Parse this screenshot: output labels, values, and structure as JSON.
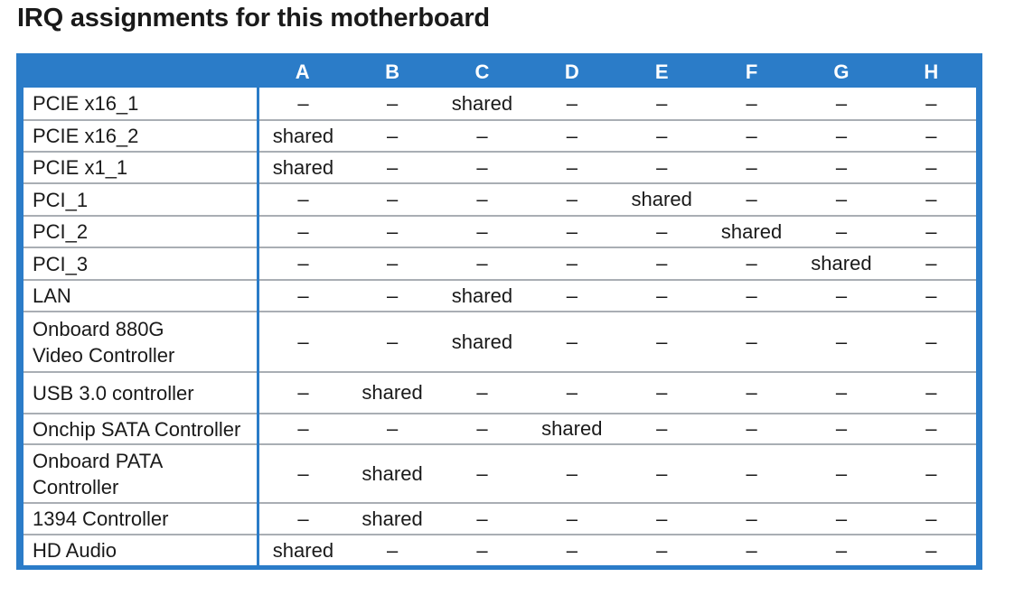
{
  "title": "IRQ assignments for this motherboard",
  "columns": [
    "",
    "A",
    "B",
    "C",
    "D",
    "E",
    "F",
    "G",
    "H"
  ],
  "rows": [
    {
      "label": "PCIE x16_1",
      "cells": [
        "–",
        "–",
        "shared",
        "–",
        "–",
        "–",
        "–",
        "–"
      ]
    },
    {
      "label": "PCIE x16_2",
      "cells": [
        "shared",
        "–",
        "–",
        "–",
        "–",
        "–",
        "–",
        "–"
      ]
    },
    {
      "label": "PCIE x1_1",
      "cells": [
        "shared",
        "–",
        "–",
        "–",
        "–",
        "–",
        "–",
        "–"
      ]
    },
    {
      "label": "PCI_1",
      "cells": [
        "–",
        "–",
        "–",
        "–",
        "shared",
        "–",
        "–",
        "–"
      ]
    },
    {
      "label": "PCI_2",
      "cells": [
        "–",
        "–",
        "–",
        "–",
        "–",
        "shared",
        "–",
        "–"
      ]
    },
    {
      "label": "PCI_3",
      "cells": [
        "–",
        "–",
        "–",
        "–",
        "–",
        "–",
        "shared",
        "–"
      ]
    },
    {
      "label": "LAN",
      "cells": [
        "–",
        "–",
        "shared",
        "–",
        "–",
        "–",
        "–",
        "–"
      ]
    },
    {
      "label": "Onboard 880G Video Controller",
      "cells": [
        "–",
        "–",
        "shared",
        "–",
        "–",
        "–",
        "–",
        "–"
      ]
    },
    {
      "label": "USB 3.0 controller",
      "cells": [
        "–",
        "shared",
        "–",
        "–",
        "–",
        "–",
        "–",
        "–"
      ]
    },
    {
      "label": "Onchip SATA Controller",
      "cells": [
        "–",
        "–",
        "–",
        "shared",
        "–",
        "–",
        "–",
        "–"
      ]
    },
    {
      "label": "Onboard PATA Controller",
      "cells": [
        "–",
        "shared",
        "–",
        "–",
        "–",
        "–",
        "–",
        "–"
      ]
    },
    {
      "label": "1394 Controller",
      "cells": [
        "–",
        "shared",
        "–",
        "–",
        "–",
        "–",
        "–",
        "–"
      ]
    },
    {
      "label": "HD Audio",
      "cells": [
        "shared",
        "–",
        "–",
        "–",
        "–",
        "–",
        "–",
        "–"
      ]
    }
  ],
  "colors": {
    "header": "#2b7cc8",
    "divider": "#a9aeb4"
  }
}
